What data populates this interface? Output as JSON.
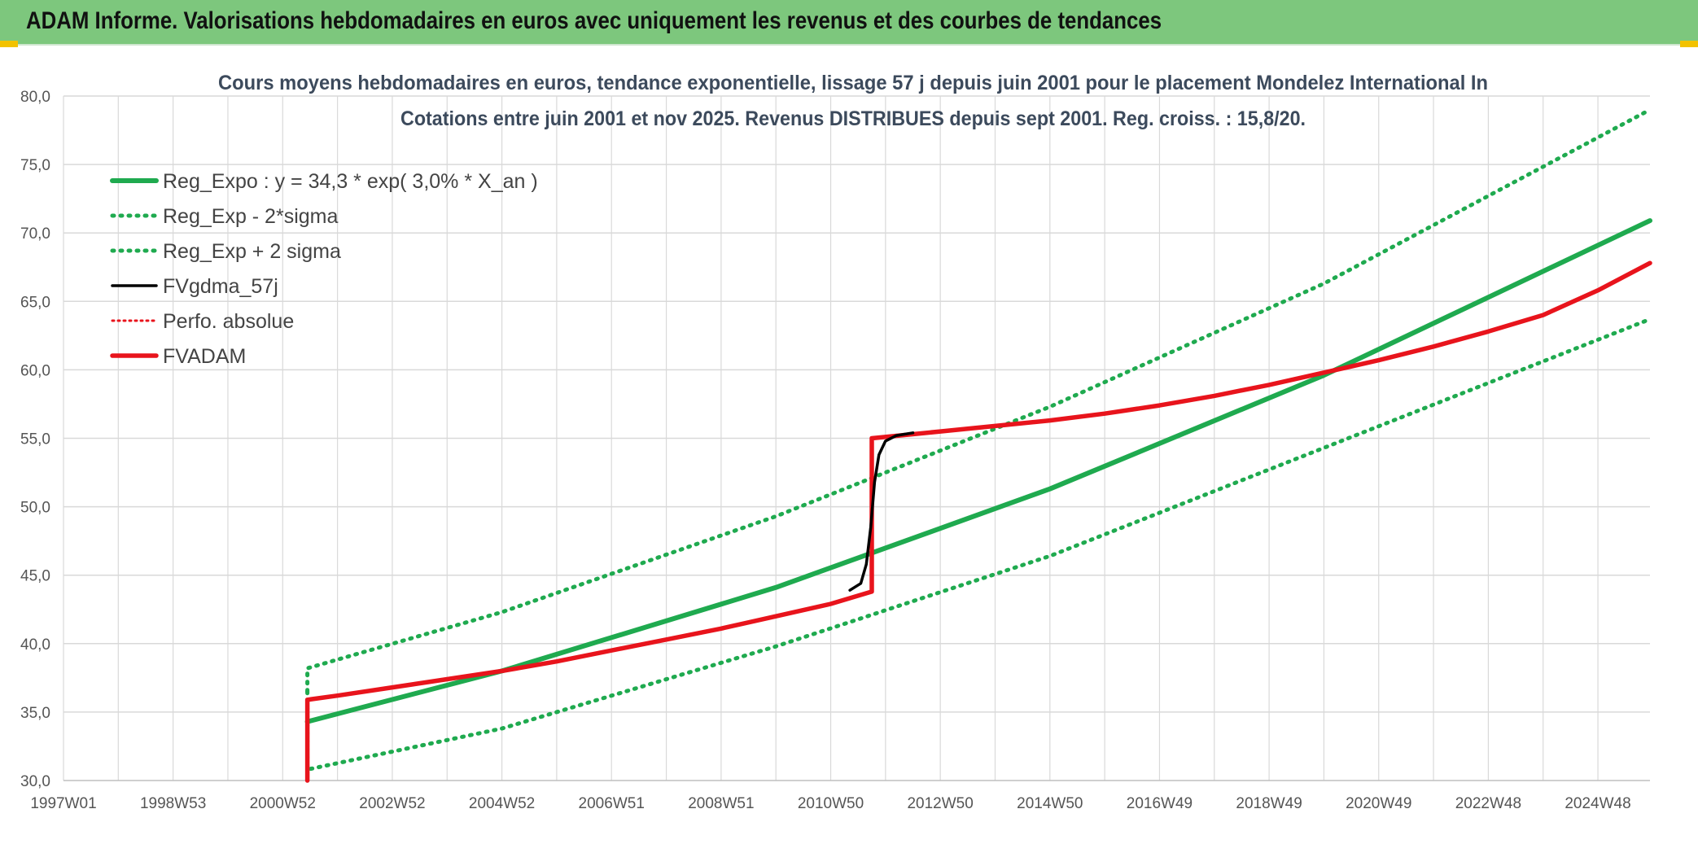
{
  "header": {
    "title": "ADAM Informe. Valorisations hebdomadaires en euros avec uniquement les revenus et des courbes de tendances"
  },
  "colors": {
    "banner": "#7dc77d",
    "green": "#1faa4f",
    "red": "#e8141c",
    "black": "#000000",
    "grid": "#d9d9d9"
  },
  "chart_data": {
    "type": "line",
    "title_line1": "Cours moyens hebdomadaires en euros, tendance exponentielle, lissage 57 j depuis juin 2001 pour le placement Mondelez International In",
    "title_line2": "Cotations entre juin 2001 et nov 2025. Revenus DISTRIBUES depuis sept 2001. Reg. croiss. : 15,8/20.",
    "ylim": [
      30,
      80
    ],
    "xlim": [
      1997.0,
      2025.95
    ],
    "y_ticks": [
      "30,0",
      "35,0",
      "40,0",
      "45,0",
      "50,0",
      "55,0",
      "60,0",
      "65,0",
      "70,0",
      "75,0",
      "80,0"
    ],
    "x_ticks": [
      "1997W01",
      "1998W53",
      "2000W52",
      "2002W52",
      "2004W52",
      "2006W51",
      "2008W51",
      "2010W50",
      "2012W50",
      "2014W50",
      "2016W49",
      "2018W49",
      "2020W49",
      "2022W48",
      "2024W48"
    ],
    "x_tick_positions": [
      1997.0,
      1999.0,
      2001.0,
      2003.0,
      2005.0,
      2007.0,
      2009.0,
      2011.0,
      2013.0,
      2015.0,
      2017.0,
      2019.0,
      2021.0,
      2023.0,
      2025.0
    ],
    "grid": true,
    "legend_position": "top-left",
    "series": [
      {
        "name": "Reg_Expo : y = 34,3 * exp( 3,0% *  X_an )",
        "style": "solid-green",
        "points": [
          [
            2001.45,
            34.3
          ],
          [
            2005,
            38.0
          ],
          [
            2010,
            44.1
          ],
          [
            2015,
            51.3
          ],
          [
            2020,
            59.6
          ],
          [
            2025.95,
            70.9
          ]
        ]
      },
      {
        "name": "Reg_Exp - 2*sigma",
        "style": "dotted-green",
        "points": [
          [
            2001.45,
            36.5
          ],
          [
            2001.45,
            30.8
          ],
          [
            2005,
            33.8
          ],
          [
            2010,
            39.8
          ],
          [
            2015,
            46.4
          ],
          [
            2020,
            54.3
          ],
          [
            2025.95,
            63.7
          ]
        ]
      },
      {
        "name": "Reg_Exp + 2 sigma",
        "style": "dotted-green",
        "points": [
          [
            2001.45,
            36.5
          ],
          [
            2001.45,
            38.2
          ],
          [
            2005,
            42.3
          ],
          [
            2010,
            49.3
          ],
          [
            2015,
            57.3
          ],
          [
            2020,
            66.3
          ],
          [
            2025.95,
            79.0
          ]
        ]
      },
      {
        "name": "FVgdma_57j",
        "style": "solid-black",
        "points": [
          [
            2011.35,
            43.9
          ],
          [
            2011.55,
            44.4
          ],
          [
            2011.65,
            45.8
          ],
          [
            2011.73,
            48.5
          ],
          [
            2011.8,
            51.8
          ],
          [
            2011.88,
            53.8
          ],
          [
            2012.0,
            54.8
          ],
          [
            2012.2,
            55.2
          ],
          [
            2012.5,
            55.4
          ]
        ]
      },
      {
        "name": "Perfo. absolue",
        "style": "dotted-red",
        "points": []
      },
      {
        "name": "FVADAM",
        "style": "solid-red",
        "points": [
          [
            2001.45,
            30.0
          ],
          [
            2001.45,
            35.9
          ],
          [
            2002,
            36.2
          ],
          [
            2003,
            36.8
          ],
          [
            2004,
            37.4
          ],
          [
            2005,
            38.0
          ],
          [
            2006,
            38.7
          ],
          [
            2007,
            39.5
          ],
          [
            2008,
            40.3
          ],
          [
            2009,
            41.1
          ],
          [
            2010,
            42.0
          ],
          [
            2011,
            42.9
          ],
          [
            2011.75,
            43.8
          ],
          [
            2011.75,
            55.0
          ],
          [
            2013,
            55.5
          ],
          [
            2014,
            55.9
          ],
          [
            2015,
            56.3
          ],
          [
            2016,
            56.8
          ],
          [
            2017,
            57.4
          ],
          [
            2018,
            58.1
          ],
          [
            2019,
            58.9
          ],
          [
            2020,
            59.8
          ],
          [
            2021,
            60.7
          ],
          [
            2022,
            61.7
          ],
          [
            2023,
            62.8
          ],
          [
            2024,
            64.0
          ],
          [
            2025,
            65.8
          ],
          [
            2025.95,
            67.8
          ]
        ]
      }
    ]
  }
}
